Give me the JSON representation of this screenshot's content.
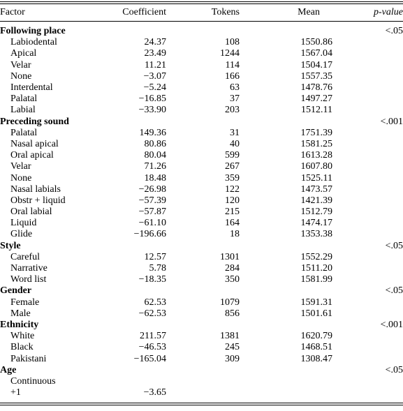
{
  "table": {
    "columns": [
      "Factor",
      "Coefficient",
      "Tokens",
      "Mean",
      "p-value"
    ],
    "groups": [
      {
        "name": "Following place",
        "p": "<.05",
        "rows": [
          [
            "Labiodental",
            "24.37",
            "108",
            "1550.86"
          ],
          [
            "Apical",
            "23.49",
            "1244",
            "1567.04"
          ],
          [
            "Velar",
            "11.21",
            "114",
            "1504.17"
          ],
          [
            "None",
            "−3.07",
            "166",
            "1557.35"
          ],
          [
            "Interdental",
            "−5.24",
            "63",
            "1478.76"
          ],
          [
            "Palatal",
            "−16.85",
            "37",
            "1497.27"
          ],
          [
            "Labial",
            "−33.90",
            "203",
            "1512.11"
          ]
        ]
      },
      {
        "name": "Preceding sound",
        "p": "<.001",
        "rows": [
          [
            "Palatal",
            "149.36",
            "31",
            "1751.39"
          ],
          [
            "Nasal apical",
            "80.86",
            "40",
            "1581.25"
          ],
          [
            "Oral apical",
            "80.04",
            "599",
            "1613.28"
          ],
          [
            "Velar",
            "71.26",
            "267",
            "1607.80"
          ],
          [
            "None",
            "18.48",
            "359",
            "1525.11"
          ],
          [
            "Nasal labials",
            "−26.98",
            "122",
            "1473.57"
          ],
          [
            "Obstr + liquid",
            "−57.39",
            "120",
            "1421.39"
          ],
          [
            "Oral labial",
            "−57.87",
            "215",
            "1512.79"
          ],
          [
            "Liquid",
            "−61.10",
            "164",
            "1474.17"
          ],
          [
            "Glide",
            "−196.66",
            "18",
            "1353.38"
          ]
        ]
      },
      {
        "name": "Style",
        "p": "<.05",
        "rows": [
          [
            "Careful",
            "12.57",
            "1301",
            "1552.29"
          ],
          [
            "Narrative",
            "5.78",
            "284",
            "1511.20"
          ],
          [
            "Word list",
            "−18.35",
            "350",
            "1581.99"
          ]
        ]
      },
      {
        "name": "Gender",
        "p": "<.05",
        "rows": [
          [
            "Female",
            "62.53",
            "1079",
            "1591.31"
          ],
          [
            "Male",
            "−62.53",
            "856",
            "1501.61"
          ]
        ]
      },
      {
        "name": "Ethnicity",
        "p": "<.001",
        "rows": [
          [
            "White",
            "211.57",
            "1381",
            "1620.79"
          ],
          [
            "Black",
            "−46.53",
            "245",
            "1468.51"
          ],
          [
            "Pakistani",
            "−165.04",
            "309",
            "1308.47"
          ]
        ]
      },
      {
        "name": "Age",
        "p": "<.05",
        "rows": [
          [
            "Continuous"
          ],
          [
            "+1",
            "−3.65"
          ]
        ]
      }
    ]
  }
}
